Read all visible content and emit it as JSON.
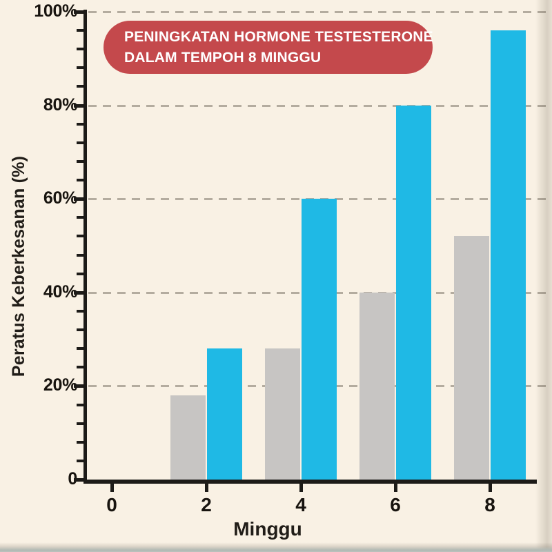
{
  "page": {
    "background_color": "#f9f1e4"
  },
  "title_badge": {
    "line1": "PENINGKATAN HORMONE TESTESTERONE",
    "line2": "DALAM TEMPOH 8 MINGGU",
    "background_color": "#c4494c",
    "text_color": "#ffffff"
  },
  "chart_data": {
    "type": "bar",
    "title": "PENINGKATAN HORMONE TESTESTERONE DALAM TEMPOH 8 MINGGU",
    "xlabel": "Minggu",
    "ylabel": "Peratus Keberkesanan (%)",
    "x_ticks": [
      "0",
      "2",
      "4",
      "6",
      "8"
    ],
    "y_ticks": [
      "0",
      "20%",
      "40%",
      "60%",
      "80%",
      "100%"
    ],
    "y_tick_values": [
      0,
      20,
      40,
      60,
      80,
      100
    ],
    "y_minor_tick_step": 4,
    "ylim": [
      0,
      100
    ],
    "grid": "horizontal dashed lines at each 20% level",
    "legend": "none",
    "categories": [
      2,
      4,
      6,
      8
    ],
    "series": [
      {
        "name": "gray-bars",
        "color": "#c7c5c3",
        "values": [
          18,
          28,
          40,
          52
        ]
      },
      {
        "name": "blue-bars",
        "color": "#1fb9e5",
        "values": [
          28,
          60,
          80,
          96
        ]
      }
    ],
    "axis_color": "#1d1b18",
    "gridline_color": "#b4ac9f"
  }
}
